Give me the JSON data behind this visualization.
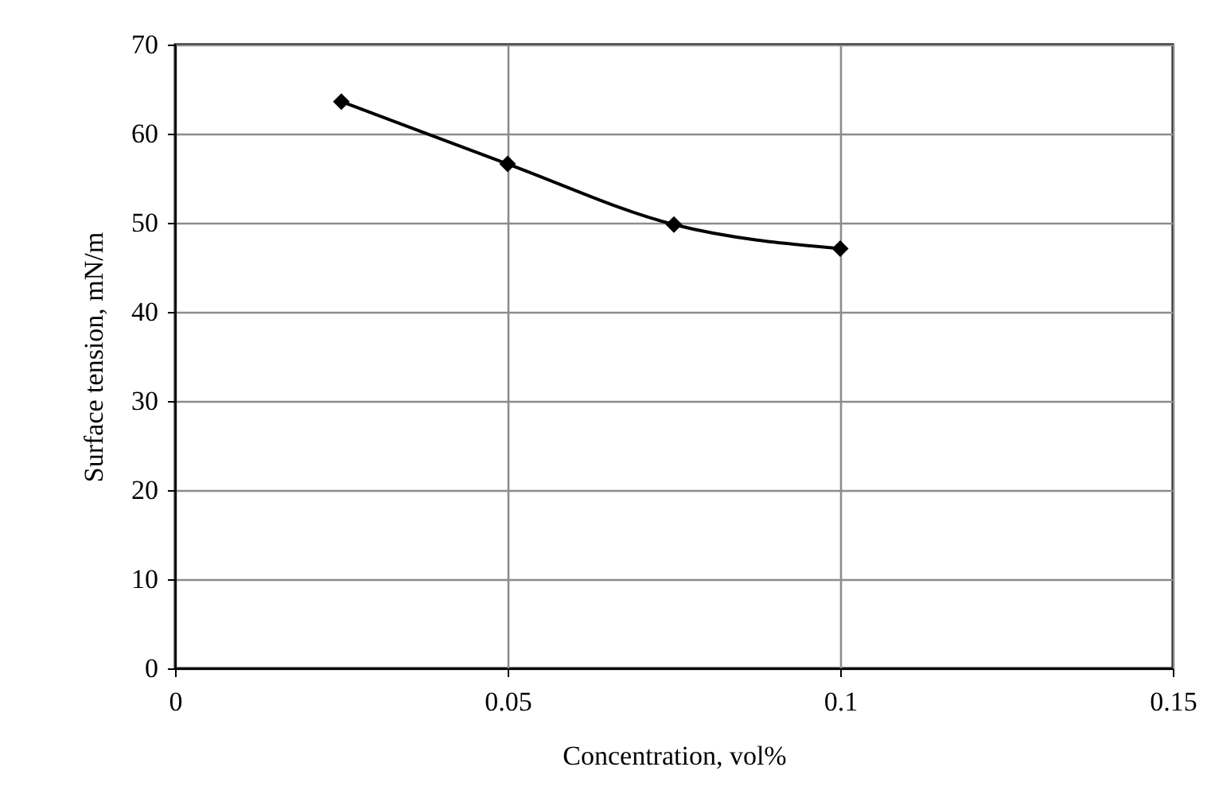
{
  "chart_data": {
    "type": "line",
    "xlabel": "Concentration, vol%",
    "ylabel": "Surface tension, mN/m",
    "x": [
      0.025,
      0.05,
      0.075,
      0.1
    ],
    "series": [
      {
        "color": "#000000",
        "values": [
          63.6,
          56.6,
          49.8,
          47.1
        ]
      }
    ],
    "xlim": [
      0,
      0.15
    ],
    "xticks": [
      0,
      0.05,
      0.1,
      0.15
    ],
    "ylim": [
      0,
      70
    ],
    "yticks": [
      0,
      10,
      20,
      30,
      40,
      50,
      60,
      70
    ],
    "grid": true,
    "legend": false,
    "marker": "diamond",
    "line_style": "solid"
  }
}
